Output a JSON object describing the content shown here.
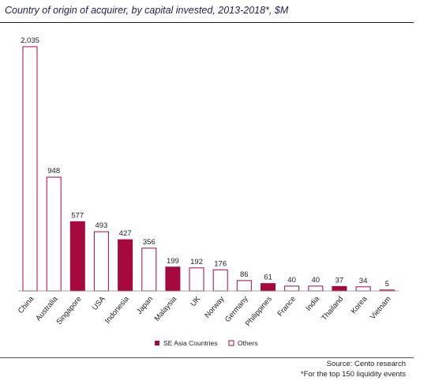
{
  "title": "Country of origin of acquirer, by capital invested, 2013-2018*, $M",
  "source": "Source: Cento research",
  "footnote": "*For the top 150 liquidity events",
  "colors": {
    "se_asia": "#a6093d",
    "others_stroke": "#a6093d",
    "others_fill": "#ffffff"
  },
  "chart_data": {
    "type": "bar",
    "categories": [
      "China",
      "Australia",
      "Singapore",
      "USA",
      "Indonesia",
      "Japan",
      "Malaysia",
      "UK",
      "Norway",
      "Germany",
      "Philippines",
      "France",
      "India",
      "Thailand",
      "Korea",
      "Vietnam"
    ],
    "values": [
      2035,
      948,
      577,
      493,
      427,
      356,
      199,
      192,
      176,
      86,
      61,
      40,
      40,
      37,
      34,
      5
    ],
    "groups": [
      "Others",
      "Others",
      "SE Asia Countries",
      "Others",
      "SE Asia Countries",
      "Others",
      "SE Asia Countries",
      "Others",
      "Others",
      "Others",
      "SE Asia Countries",
      "Others",
      "Others",
      "SE Asia Countries",
      "Others",
      "Others"
    ],
    "data_labels": [
      "2,035",
      "948",
      "577",
      "493",
      "427",
      "356",
      "199",
      "192",
      "176",
      "86",
      "61",
      "40",
      "40",
      "37",
      "34",
      "5"
    ],
    "legend": [
      "SE Asia Countries",
      "Others"
    ],
    "legend_position": "bottom-center",
    "ylim": [
      0,
      2035
    ],
    "grid": false,
    "y_axis_visible": false
  }
}
